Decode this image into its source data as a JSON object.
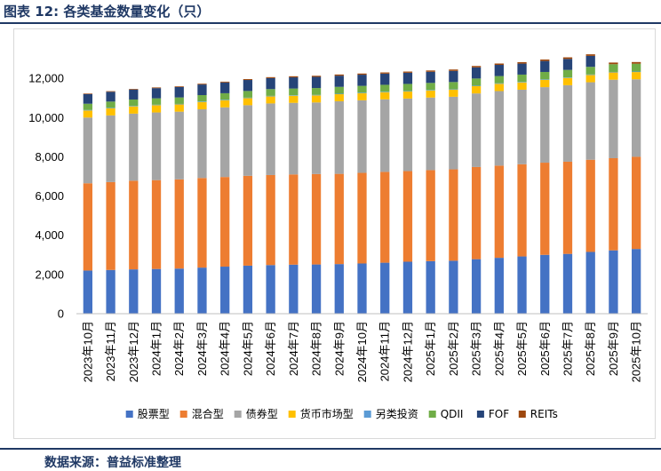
{
  "header": {
    "title": "图表 12:   各类基金数量变化（只）"
  },
  "footer": {
    "source": "数据来源：普益标准整理"
  },
  "chart_data": {
    "type": "bar",
    "stacked": true,
    "title": "",
    "xlabel": "",
    "ylabel": "",
    "ylim": [
      0,
      14000
    ],
    "yticks": [
      0,
      2000,
      4000,
      6000,
      8000,
      10000,
      12000
    ],
    "ytick_labels": [
      "0",
      "2,000",
      "4,000",
      "6,000",
      "8,000",
      "10,000",
      "12,000"
    ],
    "grid": false,
    "legend_position": "bottom",
    "categories": [
      "2023年10月",
      "2023年11月",
      "2023年12月",
      "2024年1月",
      "2024年2月",
      "2024年3月",
      "2024年4月",
      "2024年5月",
      "2024年6月",
      "2024年7月",
      "2024年8月",
      "2024年9月",
      "2024年10月",
      "2024年11月",
      "2024年12月",
      "2025年1月",
      "2025年2月",
      "2025年3月",
      "2025年4月",
      "2025年5月",
      "2025年6月",
      "2025年7月",
      "2025年8月",
      "2025年9月",
      "2025年10月"
    ],
    "series": [
      {
        "name": "股票型",
        "color": "#4472c4",
        "values": [
          2200,
          2230,
          2260,
          2280,
          2300,
          2350,
          2400,
          2450,
          2480,
          2500,
          2510,
          2530,
          2560,
          2600,
          2650,
          2680,
          2700,
          2780,
          2850,
          2920,
          3000,
          3050,
          3150,
          3230,
          3300
        ]
      },
      {
        "name": "混合型",
        "color": "#ed7d31",
        "values": [
          4450,
          4480,
          4520,
          4530,
          4550,
          4570,
          4570,
          4580,
          4590,
          4600,
          4610,
          4600,
          4620,
          4630,
          4620,
          4640,
          4660,
          4700,
          4700,
          4700,
          4700,
          4700,
          4700,
          4700,
          4700
        ]
      },
      {
        "name": "债券型",
        "color": "#a5a5a5",
        "values": [
          3350,
          3400,
          3420,
          3450,
          3450,
          3500,
          3550,
          3600,
          3650,
          3650,
          3650,
          3700,
          3700,
          3700,
          3700,
          3700,
          3700,
          3750,
          3800,
          3800,
          3850,
          3900,
          3950,
          4000,
          3950
        ]
      },
      {
        "name": "货币市场型",
        "color": "#ffc000",
        "values": [
          360,
          360,
          370,
          370,
          370,
          370,
          360,
          360,
          360,
          360,
          360,
          360,
          360,
          360,
          360,
          360,
          360,
          370,
          370,
          370,
          370,
          370,
          370,
          370,
          370
        ]
      },
      {
        "name": "另类投资",
        "color": "#5b9bd5",
        "values": [
          25,
          25,
          25,
          25,
          25,
          25,
          25,
          25,
          25,
          25,
          25,
          25,
          25,
          25,
          25,
          25,
          25,
          25,
          25,
          25,
          25,
          25,
          25,
          25,
          25
        ]
      },
      {
        "name": "QDII",
        "color": "#70ad47",
        "values": [
          320,
          320,
          325,
          325,
          330,
          330,
          335,
          340,
          345,
          345,
          350,
          350,
          350,
          355,
          360,
          360,
          365,
          365,
          370,
          375,
          380,
          385,
          390,
          395,
          400
        ]
      },
      {
        "name": "FOF",
        "color": "#264478",
        "values": [
          490,
          500,
          510,
          520,
          530,
          540,
          550,
          560,
          560,
          570,
          570,
          570,
          570,
          570,
          570,
          570,
          570,
          570,
          570,
          560,
          560,
          560,
          560,
          0,
          0
        ]
      },
      {
        "name": "REITs",
        "color": "#9e480e",
        "values": [
          30,
          30,
          30,
          35,
          35,
          40,
          40,
          45,
          50,
          55,
          55,
          60,
          60,
          60,
          60,
          65,
          70,
          70,
          70,
          75,
          75,
          80,
          80,
          85,
          85
        ]
      }
    ]
  }
}
